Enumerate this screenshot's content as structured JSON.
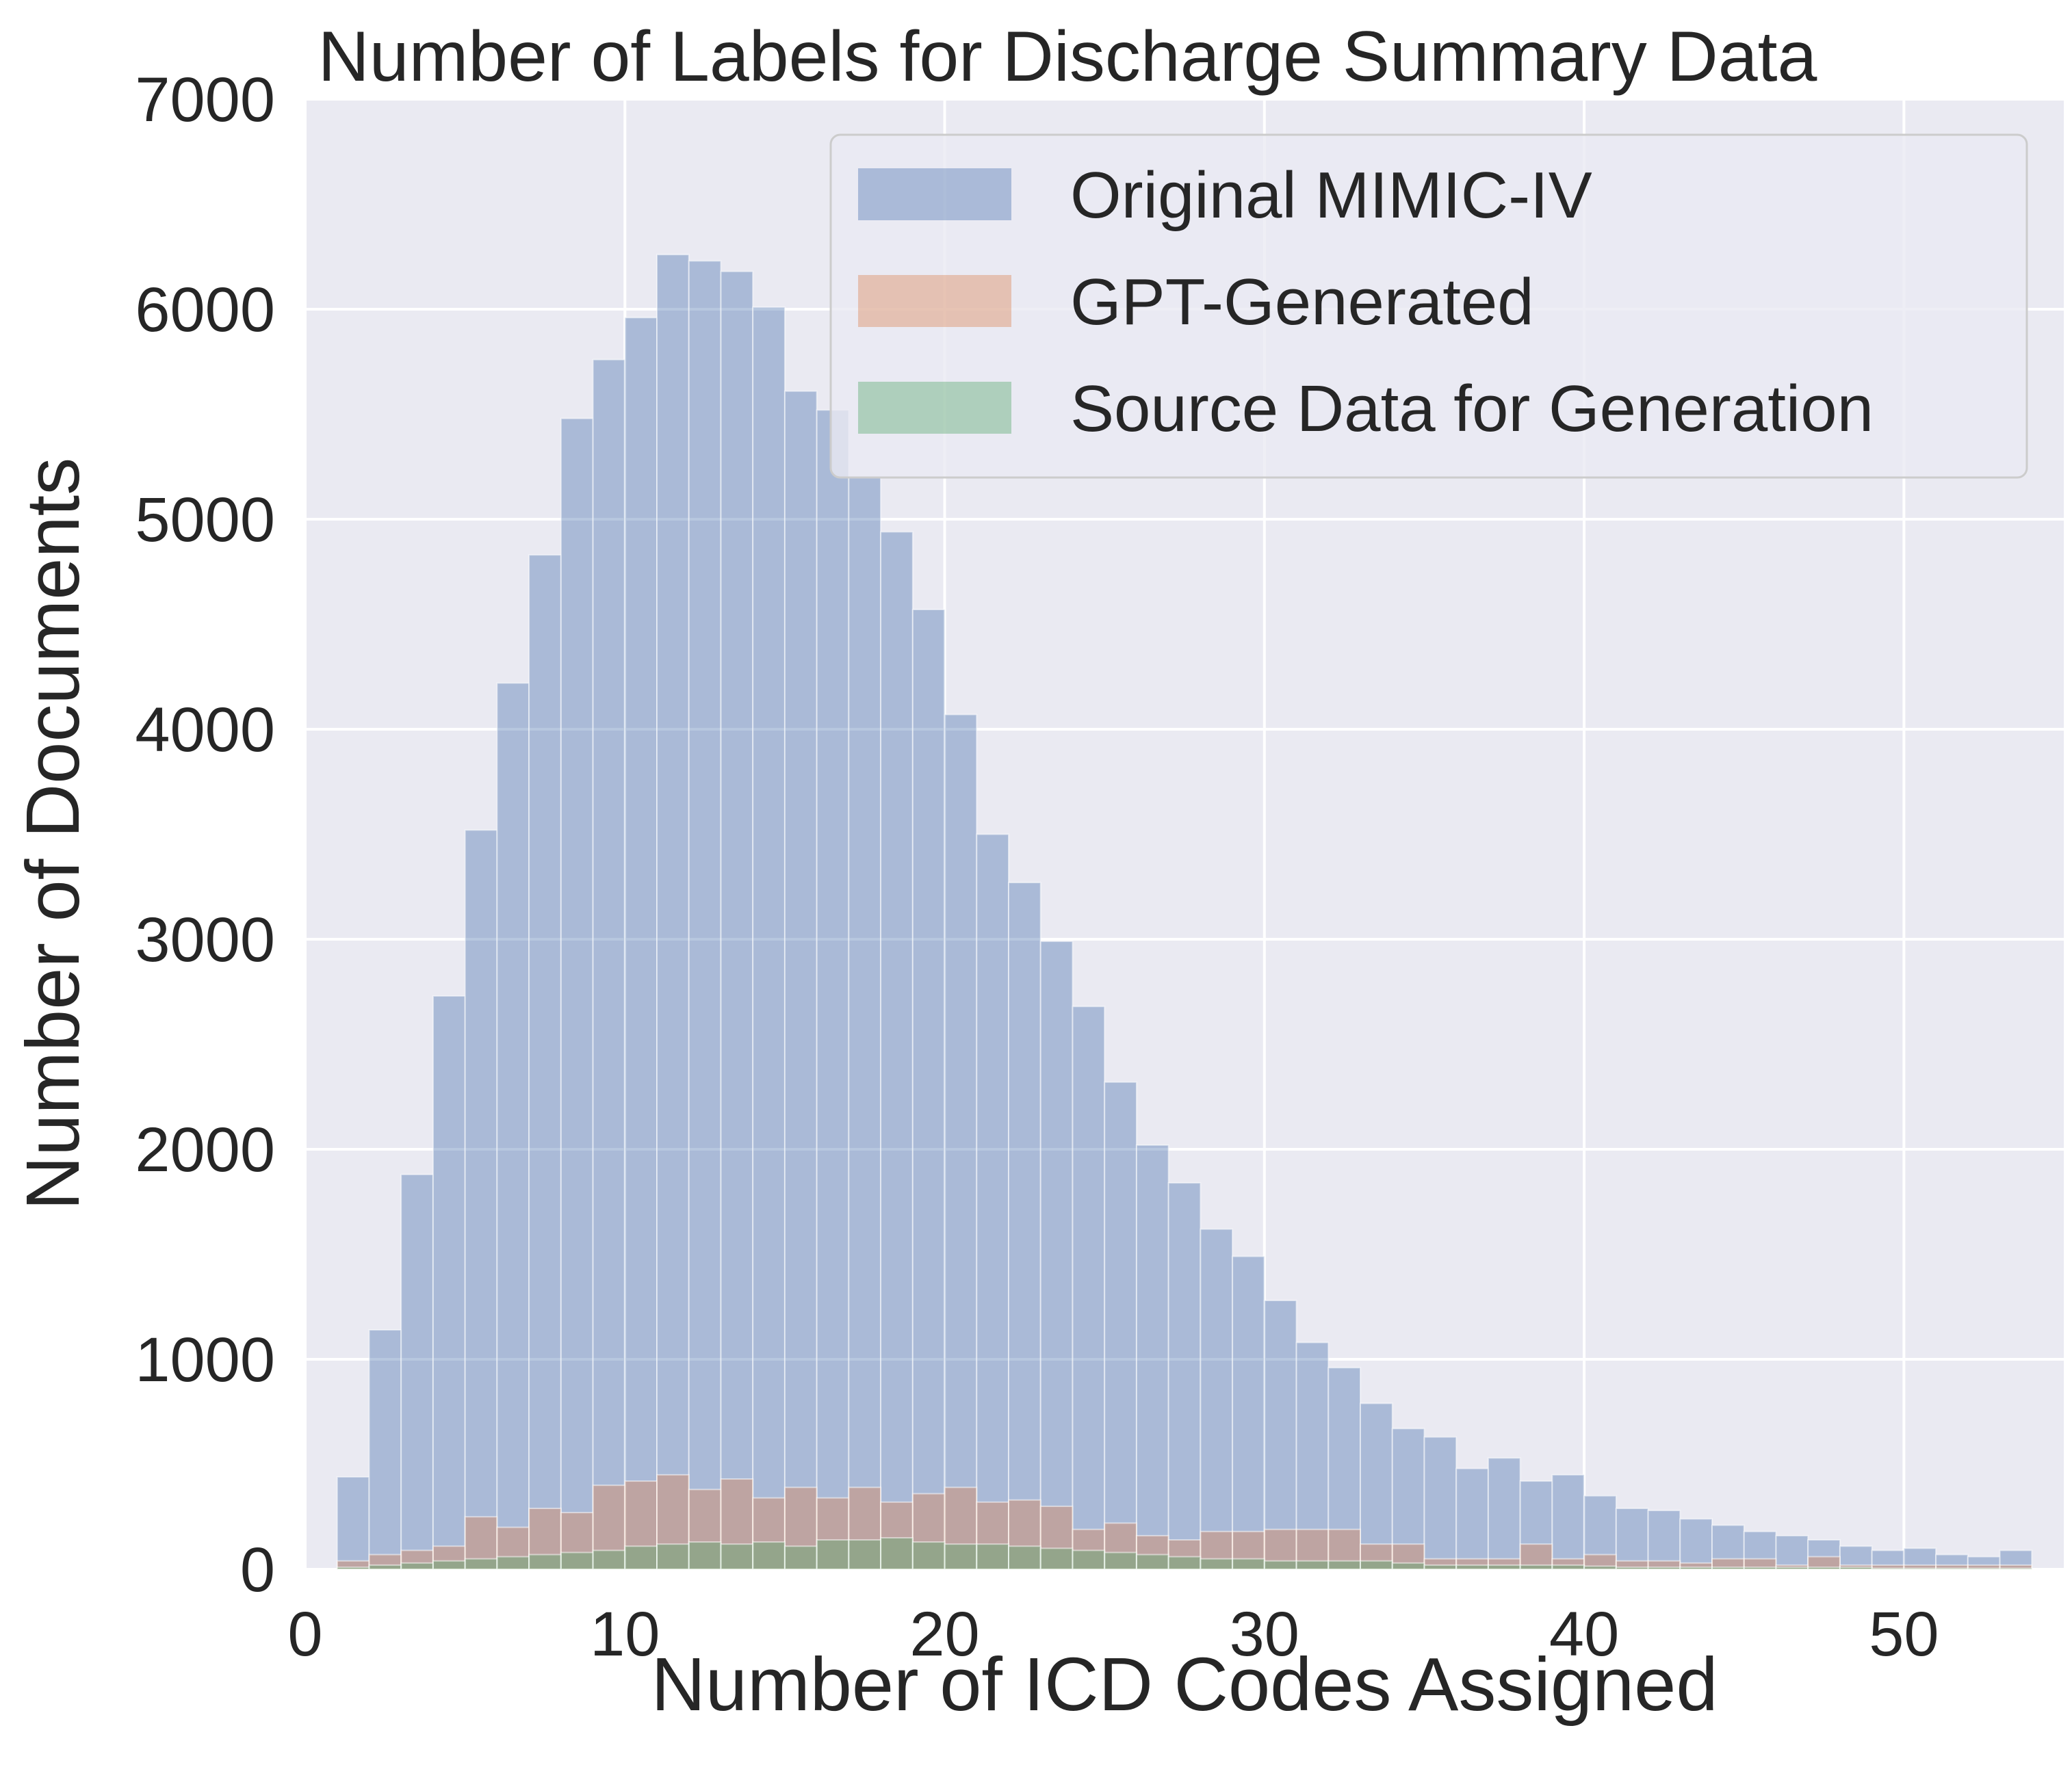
{
  "chart_data": {
    "type": "histogram",
    "title": "Number of Labels for Discharge Summary Data",
    "xlabel": "Number of ICD Codes Assigned",
    "ylabel": "Number of Documents",
    "xlim": [
      0,
      55
    ],
    "ylim": [
      0,
      7000
    ],
    "xticks": [
      "0",
      "10",
      "20",
      "30",
      "40",
      "50"
    ],
    "xtick_values": [
      0,
      10,
      20,
      30,
      40,
      50
    ],
    "yticks": [
      "0",
      "1000",
      "2000",
      "3000",
      "4000",
      "5000",
      "6000",
      "7000"
    ],
    "ytick_values": [
      0,
      1000,
      2000,
      3000,
      4000,
      5000,
      6000,
      7000
    ],
    "grid": true,
    "legend_position": "top-right",
    "bin_start": 1,
    "bin_width": 1,
    "colors": {
      "background": "#eaeaf2",
      "grid": "#ffffff",
      "original": "#4c72b0",
      "gpt": "#dd8452",
      "source": "#55a868",
      "text": "#262626"
    },
    "series": [
      {
        "name": "Original MIMIC-IV",
        "key": "original",
        "values": [
          440,
          1140,
          1880,
          2730,
          3520,
          4220,
          4830,
          5480,
          5760,
          5960,
          6260,
          6230,
          6180,
          6010,
          5610,
          5520,
          5200,
          4940,
          4570,
          4070,
          3500,
          3270,
          2990,
          2680,
          2320,
          2020,
          1840,
          1620,
          1490,
          1280,
          1080,
          960,
          790,
          670,
          630,
          480,
          530,
          420,
          450,
          350,
          290,
          280,
          240,
          210,
          180,
          160,
          140,
          110,
          90,
          100,
          70,
          60,
          90
        ]
      },
      {
        "name": "GPT-Generated",
        "key": "gpt",
        "values": [
          40,
          70,
          90,
          110,
          250,
          200,
          290,
          270,
          400,
          420,
          450,
          380,
          430,
          340,
          390,
          340,
          390,
          320,
          360,
          390,
          320,
          330,
          300,
          190,
          220,
          160,
          140,
          180,
          180,
          190,
          190,
          190,
          120,
          120,
          50,
          50,
          50,
          120,
          50,
          70,
          40,
          40,
          30,
          50,
          50,
          20,
          60,
          20,
          20,
          20,
          20,
          20,
          20
        ]
      },
      {
        "name": "Source Data for Generation",
        "key": "source",
        "values": [
          10,
          20,
          30,
          40,
          50,
          60,
          70,
          80,
          90,
          110,
          120,
          130,
          120,
          130,
          110,
          140,
          140,
          150,
          130,
          120,
          120,
          110,
          100,
          90,
          80,
          70,
          60,
          50,
          50,
          40,
          40,
          40,
          40,
          30,
          20,
          20,
          20,
          20,
          20,
          15,
          10,
          10,
          10,
          10,
          10,
          10,
          10,
          10,
          5,
          5,
          5,
          5,
          5
        ]
      }
    ]
  }
}
